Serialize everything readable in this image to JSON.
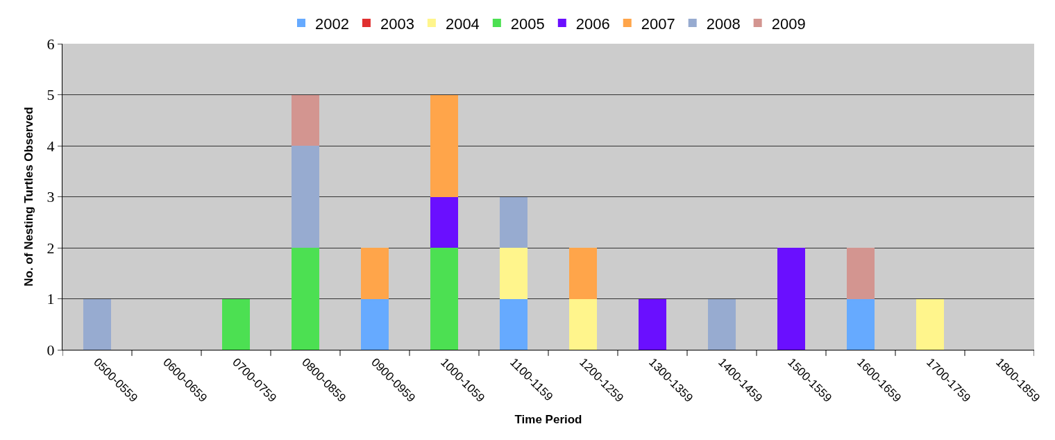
{
  "chart_data": {
    "type": "bar",
    "stacked": true,
    "xlabel": "Time Period",
    "ylabel": "No. of Nesting Turtles Observed",
    "categories": [
      "0500-0559",
      "0600-0659",
      "0700-0759",
      "0800-0859",
      "0900-0959",
      "1000-1059",
      "1100-1159",
      "1200-1259",
      "1300-1359",
      "1400-1459",
      "1500-1559",
      "1600-1659",
      "1700-1759",
      "1800-1859"
    ],
    "series": [
      {
        "name": "2002",
        "color": "#66aaff",
        "values": [
          0,
          0,
          0,
          0,
          1,
          0,
          1,
          0,
          0,
          0,
          0,
          1,
          0,
          0
        ]
      },
      {
        "name": "2003",
        "color": "#e03030",
        "values": [
          0,
          0,
          0,
          0,
          0,
          0,
          0,
          0,
          0,
          0,
          0,
          0,
          0,
          0
        ]
      },
      {
        "name": "2004",
        "color": "#fff58c",
        "values": [
          0,
          0,
          0,
          0,
          0,
          0,
          1,
          1,
          0,
          0,
          0,
          0,
          1,
          0
        ]
      },
      {
        "name": "2005",
        "color": "#4ce052",
        "values": [
          0,
          0,
          1,
          2,
          0,
          2,
          0,
          0,
          0,
          0,
          0,
          0,
          0,
          0
        ]
      },
      {
        "name": "2006",
        "color": "#6a0fff",
        "values": [
          0,
          0,
          0,
          0,
          0,
          1,
          0,
          0,
          1,
          0,
          2,
          0,
          0,
          0
        ]
      },
      {
        "name": "2007",
        "color": "#ffa54a",
        "values": [
          0,
          0,
          0,
          0,
          1,
          2,
          0,
          1,
          0,
          0,
          0,
          0,
          0,
          0
        ]
      },
      {
        "name": "2008",
        "color": "#97abd0",
        "values": [
          1,
          0,
          0,
          2,
          0,
          0,
          1,
          0,
          0,
          1,
          0,
          0,
          0,
          0
        ]
      },
      {
        "name": "2009",
        "color": "#d39590",
        "values": [
          0,
          0,
          0,
          1,
          0,
          0,
          0,
          0,
          0,
          0,
          0,
          1,
          0,
          0
        ]
      }
    ],
    "ylim": [
      0,
      6
    ],
    "yticks": [
      0,
      1,
      2,
      3,
      4,
      5,
      6
    ],
    "grid": "y",
    "legend": "top"
  }
}
